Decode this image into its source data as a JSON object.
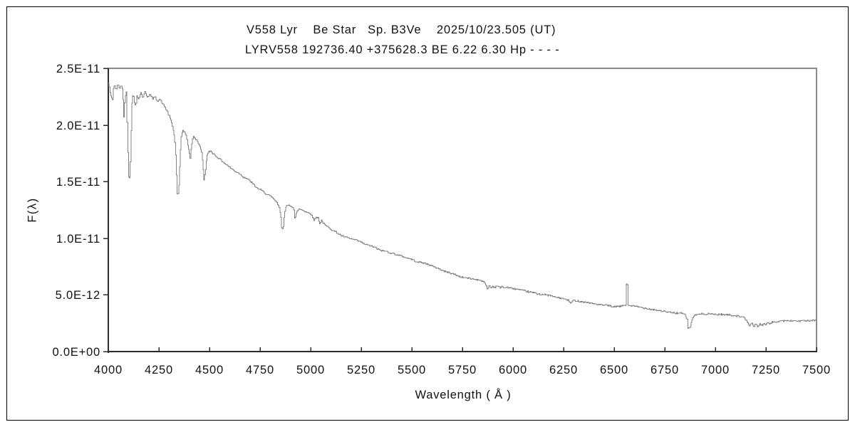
{
  "header": {
    "title": "V558 Lyr    Be Star   Sp. B3Ve    2025/10/23.505 (UT)",
    "subtitle": "LYRV558 192736.40 +375628.3 BE 6.22 6.30 Hp - - - -"
  },
  "colors": {
    "background": "#ffffff",
    "spectrum_line": "#858585",
    "frame_light": "#8a8a8a",
    "frame_dark": "#2b2b2b",
    "tick": "#2b2b2b",
    "text": "#111111"
  },
  "chart_data": {
    "type": "line",
    "title": "V558 Lyr  Be Star  Sp. B3Ve  2025/10/23.505 (UT)",
    "subtitle": "LYRV558 192736.40 +375628.3 BE 6.22 6.30 Hp - - - -",
    "xlabel": "Wavelength ( Å )",
    "ylabel": "F(λ)",
    "xlim": [
      4000,
      7500
    ],
    "ylim": [
      0,
      2.5e-11
    ],
    "grid": false,
    "legend": false,
    "x_ticks": [
      "4000",
      "4250",
      "4500",
      "4750",
      "5000",
      "5250",
      "5500",
      "5750",
      "6000",
      "6250",
      "6500",
      "6750",
      "7000",
      "7250",
      "7500"
    ],
    "y_ticks": [
      "0.0E+00",
      "5.0E-12",
      "1.0E-11",
      "1.5E-11",
      "2.0E-11",
      "2.5E-11"
    ],
    "flux_unit": 1e-12,
    "noise_amplitude_unit": 0.07,
    "points": [
      [
        4000,
        23.7
      ],
      [
        4006,
        23.2
      ],
      [
        4011,
        22.2
      ],
      [
        4014,
        23.3
      ],
      [
        4018,
        21.6
      ],
      [
        4023,
        23.2
      ],
      [
        4030,
        23.5
      ],
      [
        4038,
        23.1
      ],
      [
        4046,
        23.6
      ],
      [
        4054,
        23.2
      ],
      [
        4062,
        23.5
      ],
      [
        4070,
        23.1
      ],
      [
        4076,
        20.7
      ],
      [
        4082,
        22.5
      ],
      [
        4088,
        22.9
      ],
      [
        4094,
        19.0
      ],
      [
        4099,
        15.5
      ],
      [
        4106,
        15.3
      ],
      [
        4112,
        19.5
      ],
      [
        4116,
        22.0
      ],
      [
        4121,
        22.8
      ],
      [
        4128,
        22.0
      ],
      [
        4134,
        21.6
      ],
      [
        4140,
        22.6
      ],
      [
        4150,
        22.3
      ],
      [
        4160,
        22.9
      ],
      [
        4170,
        22.4
      ],
      [
        4180,
        22.9
      ],
      [
        4192,
        22.5
      ],
      [
        4205,
        22.7
      ],
      [
        4218,
        22.3
      ],
      [
        4230,
        22.5
      ],
      [
        4242,
        22.1
      ],
      [
        4254,
        22.3
      ],
      [
        4266,
        21.9
      ],
      [
        4278,
        21.6
      ],
      [
        4290,
        21.2
      ],
      [
        4302,
        20.7
      ],
      [
        4312,
        20.2
      ],
      [
        4322,
        19.4
      ],
      [
        4330,
        18.2
      ],
      [
        4336,
        15.6
      ],
      [
        4341,
        13.5
      ],
      [
        4347,
        14.3
      ],
      [
        4353,
        16.6
      ],
      [
        4359,
        18.9
      ],
      [
        4367,
        19.6
      ],
      [
        4375,
        19.4
      ],
      [
        4383,
        19.1
      ],
      [
        4391,
        18.4
      ],
      [
        4398,
        17.6
      ],
      [
        4404,
        17.1
      ],
      [
        4411,
        18.3
      ],
      [
        4419,
        19.0
      ],
      [
        4429,
        18.8
      ],
      [
        4439,
        18.6
      ],
      [
        4449,
        18.2
      ],
      [
        4459,
        17.7
      ],
      [
        4466,
        16.6
      ],
      [
        4472,
        15.1
      ],
      [
        4479,
        16.0
      ],
      [
        4487,
        17.3
      ],
      [
        4495,
        17.6
      ],
      [
        4505,
        17.7
      ],
      [
        4516,
        17.5
      ],
      [
        4528,
        17.3
      ],
      [
        4541,
        17.1
      ],
      [
        4555,
        16.9
      ],
      [
        4569,
        16.7
      ],
      [
        4583,
        16.5
      ],
      [
        4597,
        16.3
      ],
      [
        4611,
        16.1
      ],
      [
        4625,
        15.9
      ],
      [
        4639,
        15.8
      ],
      [
        4653,
        15.6
      ],
      [
        4667,
        15.4
      ],
      [
        4681,
        15.3
      ],
      [
        4695,
        15.1
      ],
      [
        4709,
        14.9
      ],
      [
        4723,
        14.6
      ],
      [
        4737,
        14.4
      ],
      [
        4751,
        14.3
      ],
      [
        4765,
        14.1
      ],
      [
        4779,
        13.9
      ],
      [
        4793,
        13.8
      ],
      [
        4807,
        13.6
      ],
      [
        4820,
        13.4
      ],
      [
        4833,
        13.1
      ],
      [
        4844,
        12.7
      ],
      [
        4851,
        12.0
      ],
      [
        4857,
        10.8
      ],
      [
        4863,
        10.9
      ],
      [
        4869,
        12.1
      ],
      [
        4877,
        12.8
      ],
      [
        4887,
        12.9
      ],
      [
        4897,
        12.9
      ],
      [
        4907,
        12.8
      ],
      [
        4915,
        12.7
      ],
      [
        4921,
        11.6
      ],
      [
        4927,
        12.1
      ],
      [
        4935,
        12.5
      ],
      [
        4945,
        12.6
      ],
      [
        4957,
        12.5
      ],
      [
        4969,
        12.4
      ],
      [
        4981,
        12.3
      ],
      [
        4993,
        12.2
      ],
      [
        5004,
        12.1
      ],
      [
        5012,
        11.7
      ],
      [
        5018,
        11.6
      ],
      [
        5026,
        11.9
      ],
      [
        5036,
        11.8
      ],
      [
        5044,
        11.3
      ],
      [
        5052,
        11.6
      ],
      [
        5062,
        11.3
      ],
      [
        5074,
        11.1
      ],
      [
        5086,
        11.0
      ],
      [
        5100,
        10.8
      ],
      [
        5118,
        10.6
      ],
      [
        5136,
        10.4
      ],
      [
        5154,
        10.2
      ],
      [
        5172,
        10.1
      ],
      [
        5190,
        10.0
      ],
      [
        5208,
        9.9
      ],
      [
        5226,
        9.8
      ],
      [
        5244,
        9.7
      ],
      [
        5262,
        9.5
      ],
      [
        5280,
        9.4
      ],
      [
        5298,
        9.3
      ],
      [
        5316,
        9.2
      ],
      [
        5334,
        9.0
      ],
      [
        5352,
        8.9
      ],
      [
        5370,
        8.85
      ],
      [
        5388,
        8.75
      ],
      [
        5406,
        8.65
      ],
      [
        5424,
        8.55
      ],
      [
        5442,
        8.45
      ],
      [
        5460,
        8.35
      ],
      [
        5478,
        8.25
      ],
      [
        5496,
        8.15
      ],
      [
        5514,
        8.0
      ],
      [
        5532,
        7.9
      ],
      [
        5550,
        7.85
      ],
      [
        5568,
        7.75
      ],
      [
        5586,
        7.65
      ],
      [
        5604,
        7.5
      ],
      [
        5622,
        7.4
      ],
      [
        5640,
        7.25
      ],
      [
        5658,
        7.1
      ],
      [
        5676,
        7.0
      ],
      [
        5694,
        6.9
      ],
      [
        5712,
        6.8
      ],
      [
        5730,
        6.65
      ],
      [
        5748,
        6.55
      ],
      [
        5766,
        6.5
      ],
      [
        5784,
        6.45
      ],
      [
        5802,
        6.4
      ],
      [
        5820,
        6.35
      ],
      [
        5838,
        6.3
      ],
      [
        5854,
        6.2
      ],
      [
        5866,
        5.8
      ],
      [
        5874,
        5.5
      ],
      [
        5882,
        5.9
      ],
      [
        5890,
        5.55
      ],
      [
        5898,
        5.8
      ],
      [
        5910,
        5.65
      ],
      [
        5922,
        5.85
      ],
      [
        5934,
        5.6
      ],
      [
        5946,
        5.75
      ],
      [
        5958,
        5.6
      ],
      [
        5970,
        5.7
      ],
      [
        5982,
        5.6
      ],
      [
        6000,
        5.55
      ],
      [
        6020,
        5.5
      ],
      [
        6040,
        5.4
      ],
      [
        6060,
        5.35
      ],
      [
        6080,
        5.25
      ],
      [
        6100,
        5.2
      ],
      [
        6120,
        5.1
      ],
      [
        6140,
        5.05
      ],
      [
        6160,
        5.0
      ],
      [
        6180,
        4.95
      ],
      [
        6200,
        4.85
      ],
      [
        6220,
        4.75
      ],
      [
        6240,
        4.7
      ],
      [
        6258,
        4.6
      ],
      [
        6274,
        4.5
      ],
      [
        6284,
        4.25
      ],
      [
        6294,
        4.5
      ],
      [
        6310,
        4.5
      ],
      [
        6326,
        4.45
      ],
      [
        6342,
        4.4
      ],
      [
        6358,
        4.35
      ],
      [
        6374,
        4.3
      ],
      [
        6390,
        4.25
      ],
      [
        6406,
        4.2
      ],
      [
        6422,
        4.15
      ],
      [
        6438,
        4.1
      ],
      [
        6454,
        4.1
      ],
      [
        6470,
        4.05
      ],
      [
        6486,
        4.0
      ],
      [
        6498,
        3.9
      ],
      [
        6510,
        4.0
      ],
      [
        6524,
        3.95
      ],
      [
        6538,
        4.05
      ],
      [
        6552,
        4.1
      ],
      [
        6556,
        4.1
      ],
      [
        6558,
        5.9
      ],
      [
        6566,
        5.9
      ],
      [
        6568,
        4.1
      ],
      [
        6582,
        4.05
      ],
      [
        6598,
        4.0
      ],
      [
        6614,
        3.95
      ],
      [
        6630,
        3.9
      ],
      [
        6646,
        3.85
      ],
      [
        6662,
        3.8
      ],
      [
        6678,
        3.75
      ],
      [
        6694,
        3.7
      ],
      [
        6710,
        3.65
      ],
      [
        6726,
        3.6
      ],
      [
        6742,
        3.55
      ],
      [
        6758,
        3.5
      ],
      [
        6774,
        3.45
      ],
      [
        6790,
        3.45
      ],
      [
        6806,
        3.4
      ],
      [
        6822,
        3.4
      ],
      [
        6838,
        3.35
      ],
      [
        6852,
        3.2
      ],
      [
        6860,
        2.8
      ],
      [
        6864,
        2.05
      ],
      [
        6874,
        2.1
      ],
      [
        6880,
        2.6
      ],
      [
        6888,
        3.0
      ],
      [
        6898,
        3.2
      ],
      [
        6910,
        3.3
      ],
      [
        6924,
        3.3
      ],
      [
        6938,
        3.35
      ],
      [
        6952,
        3.3
      ],
      [
        6966,
        3.35
      ],
      [
        6980,
        3.3
      ],
      [
        6994,
        3.3
      ],
      [
        7010,
        3.25
      ],
      [
        7026,
        3.3
      ],
      [
        7042,
        3.25
      ],
      [
        7058,
        3.25
      ],
      [
        7074,
        3.2
      ],
      [
        7090,
        3.2
      ],
      [
        7106,
        3.15
      ],
      [
        7122,
        3.1
      ],
      [
        7138,
        3.0
      ],
      [
        7150,
        2.8
      ],
      [
        7160,
        2.5
      ],
      [
        7170,
        2.3
      ],
      [
        7180,
        2.45
      ],
      [
        7190,
        2.25
      ],
      [
        7200,
        2.4
      ],
      [
        7210,
        2.2
      ],
      [
        7220,
        2.45
      ],
      [
        7230,
        2.3
      ],
      [
        7240,
        2.5
      ],
      [
        7250,
        2.35
      ],
      [
        7260,
        2.55
      ],
      [
        7270,
        2.45
      ],
      [
        7280,
        2.6
      ],
      [
        7292,
        2.55
      ],
      [
        7304,
        2.65
      ],
      [
        7318,
        2.7
      ],
      [
        7332,
        2.72
      ],
      [
        7346,
        2.7
      ],
      [
        7360,
        2.73
      ],
      [
        7376,
        2.7
      ],
      [
        7392,
        2.72
      ],
      [
        7408,
        2.7
      ],
      [
        7424,
        2.72
      ],
      [
        7440,
        2.7
      ],
      [
        7456,
        2.73
      ],
      [
        7472,
        2.7
      ],
      [
        7486,
        2.75
      ],
      [
        7500,
        2.78
      ]
    ]
  }
}
